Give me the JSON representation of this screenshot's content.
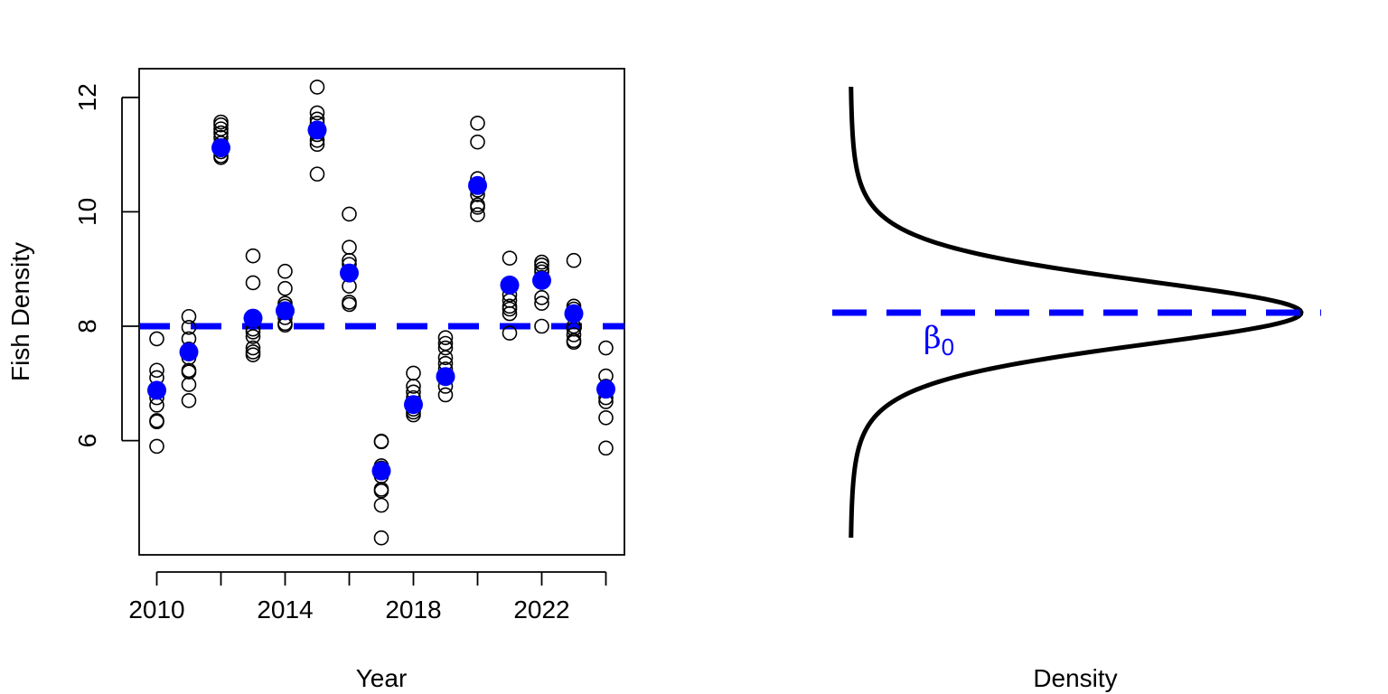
{
  "chart_data": [
    {
      "type": "scatter",
      "title": "",
      "xlabel": "Year",
      "ylabel": "Fish Density",
      "xlim": [
        2009.4,
        2024.6
      ],
      "ylim": [
        4.0,
        12.5
      ],
      "x_ticks": [
        2010,
        2012,
        2014,
        2016,
        2018,
        2020,
        2022,
        2024
      ],
      "x_tick_labels": [
        "2010",
        "",
        "2014",
        "",
        "2018",
        "",
        "2022",
        ""
      ],
      "y_ticks": [
        6,
        8,
        10,
        12
      ],
      "y_tick_labels": [
        "6",
        "8",
        "10",
        "12"
      ],
      "grid": false,
      "reference_line": {
        "y": 8.0,
        "color": "#0000ff",
        "style": "dashed"
      },
      "series": [
        {
          "marker": "open-circle",
          "color": "#000000",
          "points": [
            {
              "year": 2010,
              "values": [
                7.78,
                7.23,
                7.1,
                6.9,
                6.75,
                6.62,
                6.35,
                6.33,
                5.9
              ]
            },
            {
              "year": 2011,
              "values": [
                8.17,
                7.98,
                7.78,
                7.6,
                7.45,
                7.23,
                7.2,
                6.98,
                6.7
              ]
            },
            {
              "year": 2012,
              "values": [
                11.57,
                11.52,
                11.45,
                11.38,
                11.3,
                11.2,
                11.05,
                10.98,
                10.95
              ]
            },
            {
              "year": 2013,
              "values": [
                9.23,
                8.76,
                8.1,
                7.95,
                7.9,
                7.82,
                7.62,
                7.55,
                7.5
              ]
            },
            {
              "year": 2014,
              "values": [
                8.96,
                8.66,
                8.4,
                8.35,
                8.3,
                8.25,
                8.15,
                8.05,
                8.02
              ]
            },
            {
              "year": 2015,
              "values": [
                12.18,
                11.73,
                11.62,
                11.55,
                11.45,
                11.35,
                11.25,
                11.18,
                10.66
              ]
            },
            {
              "year": 2016,
              "values": [
                9.96,
                9.38,
                9.15,
                9.08,
                8.95,
                8.7,
                8.42,
                8.38
              ]
            },
            {
              "year": 2017,
              "values": [
                5.99,
                5.98,
                5.56,
                5.52,
                5.38,
                5.15,
                5.12,
                4.87,
                4.3
              ]
            },
            {
              "year": 2018,
              "values": [
                7.18,
                6.95,
                6.85,
                6.75,
                6.65,
                6.55,
                6.5,
                6.45
              ]
            },
            {
              "year": 2019,
              "values": [
                7.8,
                7.7,
                7.62,
                7.45,
                7.35,
                7.25,
                7.15,
                6.95,
                6.8
              ]
            },
            {
              "year": 2020,
              "values": [
                11.55,
                11.22,
                10.58,
                10.45,
                10.38,
                10.3,
                10.12,
                10.08,
                9.95
              ]
            },
            {
              "year": 2021,
              "values": [
                9.19,
                8.7,
                8.55,
                8.45,
                8.35,
                8.3,
                8.22,
                7.88
              ]
            },
            {
              "year": 2022,
              "values": [
                9.12,
                9.07,
                9.0,
                8.95,
                8.85,
                8.5,
                8.4,
                8.0
              ]
            },
            {
              "year": 2023,
              "values": [
                9.15,
                8.35,
                8.3,
                8.2,
                8.0,
                7.95,
                7.85,
                7.75,
                7.72
              ]
            },
            {
              "year": 2024,
              "values": [
                7.62,
                7.13,
                6.95,
                6.75,
                6.68,
                6.4,
                5.87
              ]
            }
          ]
        },
        {
          "marker": "filled-circle",
          "color": "#0000ff",
          "points": [
            {
              "year": 2010,
              "value": 6.88
            },
            {
              "year": 2011,
              "value": 7.55
            },
            {
              "year": 2012,
              "value": 11.12
            },
            {
              "year": 2013,
              "value": 8.14
            },
            {
              "year": 2014,
              "value": 8.27
            },
            {
              "year": 2015,
              "value": 11.43
            },
            {
              "year": 2016,
              "value": 8.93
            },
            {
              "year": 2017,
              "value": 5.47
            },
            {
              "year": 2018,
              "value": 6.63
            },
            {
              "year": 2019,
              "value": 7.12
            },
            {
              "year": 2020,
              "value": 10.46
            },
            {
              "year": 2021,
              "value": 8.72
            },
            {
              "year": 2022,
              "value": 8.8
            },
            {
              "year": 2023,
              "value": 8.22
            },
            {
              "year": 2024,
              "value": 6.9
            }
          ]
        }
      ]
    },
    {
      "type": "line",
      "title": "",
      "xlabel": "Density",
      "ylabel": "",
      "axes_visible": false,
      "curve": {
        "shape": "t-like density, rotated (vertical)",
        "color": "#000000"
      },
      "reference_line": {
        "color": "#0000ff",
        "style": "dashed"
      },
      "annotation": {
        "base": "β",
        "subscript": "0",
        "color": "#0000ff"
      }
    }
  ]
}
